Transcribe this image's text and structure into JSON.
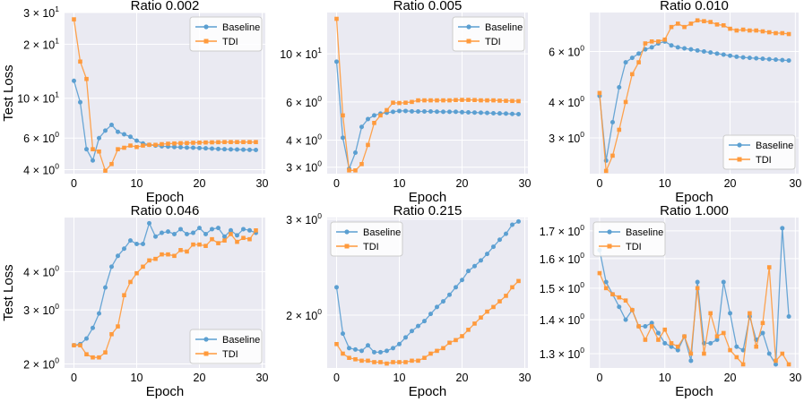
{
  "chart_data": [
    {
      "type": "line",
      "title": "Ratio 0.002",
      "xlabel": "Epoch",
      "ylabel": "Test Loss",
      "yscale": "log",
      "xlim": [
        -1.5,
        30.5
      ],
      "ylim": [
        3.8,
        30
      ],
      "xticks": [
        0,
        10,
        20,
        30
      ],
      "yticks": [
        {
          "v": 4,
          "b": "4",
          "e": "0"
        },
        {
          "v": 6,
          "b": "6",
          "e": "0"
        },
        {
          "v": 10,
          "b": "10",
          "e": "1"
        },
        {
          "v": 20,
          "b": "2",
          "e": "1"
        },
        {
          "v": 30,
          "b": "3",
          "e": "1"
        }
      ],
      "legend_position": "top-right",
      "series": [
        {
          "name": "Baseline",
          "values": [
            12.5,
            9.5,
            5.2,
            4.5,
            6.0,
            6.6,
            7.1,
            6.5,
            6.3,
            6.1,
            5.8,
            5.6,
            5.5,
            5.45,
            5.4,
            5.38,
            5.35,
            5.33,
            5.31,
            5.3,
            5.28,
            5.26,
            5.24,
            5.22,
            5.2,
            5.19,
            5.18,
            5.17,
            5.16,
            5.15
          ]
        },
        {
          "name": "TDI",
          "values": [
            27.5,
            16.0,
            12.8,
            5.2,
            5.05,
            3.95,
            4.3,
            5.2,
            5.3,
            5.45,
            5.35,
            5.45,
            5.5,
            5.5,
            5.55,
            5.58,
            5.6,
            5.62,
            5.63,
            5.65,
            5.66,
            5.67,
            5.68,
            5.69,
            5.7,
            5.7,
            5.7,
            5.7,
            5.7,
            5.7
          ]
        }
      ]
    },
    {
      "type": "line",
      "title": "Ratio 0.005",
      "xlabel": "Epoch",
      "ylabel": "",
      "yscale": "log",
      "xlim": [
        -1.5,
        30.5
      ],
      "ylim": [
        2.8,
        15.5
      ],
      "xticks": [
        0,
        10,
        20,
        30
      ],
      "yticks": [
        {
          "v": 3,
          "b": "3",
          "e": "0"
        },
        {
          "v": 4,
          "b": "4",
          "e": "0"
        },
        {
          "v": 6,
          "b": "6",
          "e": "0"
        },
        {
          "v": 10,
          "b": "10",
          "e": "1"
        }
      ],
      "legend_position": "top-right",
      "series": [
        {
          "name": "Baseline",
          "values": [
            9.2,
            4.1,
            2.95,
            3.5,
            4.6,
            5.0,
            5.2,
            5.3,
            5.35,
            5.4,
            5.45,
            5.45,
            5.43,
            5.42,
            5.42,
            5.42,
            5.41,
            5.4,
            5.4,
            5.4,
            5.38,
            5.37,
            5.36,
            5.35,
            5.34,
            5.32,
            5.31,
            5.3,
            5.28,
            5.27
          ]
        },
        {
          "name": "TDI",
          "values": [
            14.5,
            5.2,
            2.9,
            2.9,
            3.1,
            3.8,
            4.8,
            5.2,
            5.5,
            5.95,
            5.93,
            5.95,
            6.0,
            6.1,
            6.1,
            6.1,
            6.1,
            6.1,
            6.1,
            6.12,
            6.13,
            6.13,
            6.12,
            6.1,
            6.1,
            6.1,
            6.08,
            6.07,
            6.06,
            6.05
          ]
        }
      ]
    },
    {
      "type": "line",
      "title": "Ratio 0.010",
      "xlabel": "Epoch",
      "ylabel": "",
      "yscale": "log",
      "xlim": [
        -1.5,
        30.5
      ],
      "ylim": [
        2.25,
        8.2
      ],
      "xticks": [
        0,
        10,
        20,
        30
      ],
      "yticks": [
        {
          "v": 3,
          "b": "3",
          "e": "0"
        },
        {
          "v": 4,
          "b": "4",
          "e": "0"
        },
        {
          "v": 6,
          "b": "6",
          "e": "0"
        }
      ],
      "legend_position": "bottom-right",
      "series": [
        {
          "name": "Baseline",
          "values": [
            4.2,
            2.5,
            3.4,
            4.5,
            5.5,
            5.7,
            5.9,
            6.1,
            6.2,
            6.4,
            6.5,
            6.3,
            6.2,
            6.15,
            6.1,
            6.05,
            6.0,
            5.95,
            5.9,
            5.85,
            5.8,
            5.75,
            5.72,
            5.7,
            5.68,
            5.66,
            5.64,
            5.62,
            5.6,
            5.58
          ]
        },
        {
          "name": "TDI",
          "values": [
            4.3,
            2.3,
            2.6,
            3.2,
            4.0,
            5.0,
            5.5,
            6.4,
            6.5,
            6.5,
            6.6,
            7.3,
            7.5,
            7.3,
            7.5,
            7.7,
            7.65,
            7.6,
            7.45,
            7.4,
            7.2,
            7.1,
            7.15,
            7.1,
            7.1,
            7.05,
            7.0,
            6.95,
            6.95,
            6.9
          ]
        }
      ]
    },
    {
      "type": "line",
      "title": "Ratio 0.046",
      "xlabel": "Epoch",
      "ylabel": "Test Loss",
      "yscale": "log",
      "xlim": [
        -1.5,
        30.5
      ],
      "ylim": [
        1.94,
        6.0
      ],
      "xticks": [
        0,
        10,
        20,
        30
      ],
      "yticks": [
        {
          "v": 2,
          "b": "2",
          "e": "0"
        },
        {
          "v": 3,
          "b": "3",
          "e": "0"
        },
        {
          "v": 4,
          "b": "4",
          "e": "0"
        }
      ],
      "legend_position": "bottom-right",
      "series": [
        {
          "name": "Baseline",
          "values": [
            2.3,
            2.32,
            2.42,
            2.62,
            2.92,
            3.55,
            4.15,
            4.5,
            4.75,
            5.05,
            4.92,
            4.92,
            5.75,
            5.2,
            5.35,
            5.4,
            5.3,
            5.5,
            5.3,
            5.35,
            5.55,
            5.3,
            5.5,
            5.55,
            5.2,
            5.45,
            5.25,
            5.5,
            5.45,
            5.35
          ]
        },
        {
          "name": "TDI",
          "values": [
            2.3,
            2.3,
            2.15,
            2.1,
            2.1,
            2.18,
            2.5,
            2.65,
            3.35,
            3.7,
            3.95,
            4.15,
            4.35,
            4.4,
            4.55,
            4.55,
            4.5,
            4.7,
            4.65,
            4.9,
            4.9,
            4.85,
            5.1,
            4.95,
            5.05,
            5.3,
            5.0,
            5.15,
            5.1,
            5.45
          ]
        }
      ]
    },
    {
      "type": "line",
      "title": "Ratio 0.215",
      "xlabel": "Epoch",
      "ylabel": "",
      "yscale": "log",
      "xlim": [
        -1.5,
        30.5
      ],
      "ylim": [
        1.6,
        3.02
      ],
      "xticks": [
        0,
        10,
        20,
        30
      ],
      "yticks": [
        {
          "v": 2,
          "b": "2",
          "e": "0"
        },
        {
          "v": 3,
          "b": "3",
          "e": "0"
        }
      ],
      "legend_position": "top-left",
      "series": [
        {
          "name": "Baseline",
          "values": [
            2.25,
            1.85,
            1.74,
            1.73,
            1.72,
            1.76,
            1.71,
            1.71,
            1.72,
            1.74,
            1.77,
            1.82,
            1.87,
            1.91,
            1.95,
            2.01,
            2.07,
            2.12,
            2.18,
            2.25,
            2.32,
            2.41,
            2.46,
            2.52,
            2.59,
            2.67,
            2.75,
            2.82,
            2.93,
            2.97
          ]
        },
        {
          "name": "TDI",
          "values": [
            1.77,
            1.7,
            1.67,
            1.66,
            1.65,
            1.65,
            1.64,
            1.64,
            1.63,
            1.64,
            1.64,
            1.64,
            1.65,
            1.65,
            1.67,
            1.7,
            1.72,
            1.74,
            1.78,
            1.8,
            1.83,
            1.88,
            1.93,
            1.98,
            2.03,
            2.07,
            2.12,
            2.17,
            2.25,
            2.31
          ]
        }
      ]
    },
    {
      "type": "line",
      "title": "Ratio 1.000",
      "xlabel": "Epoch",
      "ylabel": "",
      "yscale": "log",
      "xlim": [
        -1.5,
        30.5
      ],
      "ylim": [
        1.26,
        1.75
      ],
      "xticks": [
        0,
        10,
        20,
        30
      ],
      "yticks": [
        {
          "v": 1.3,
          "b": "1.3",
          "e": "0"
        },
        {
          "v": 1.4,
          "b": "1.4",
          "e": "0"
        },
        {
          "v": 1.5,
          "b": "1.5",
          "e": "0"
        },
        {
          "v": 1.6,
          "b": "1.6",
          "e": "0"
        },
        {
          "v": 1.7,
          "b": "1.7",
          "e": "0"
        }
      ],
      "legend_position": "top-left",
      "series": [
        {
          "name": "Baseline",
          "values": [
            1.63,
            1.52,
            1.48,
            1.44,
            1.4,
            1.43,
            1.38,
            1.38,
            1.39,
            1.36,
            1.33,
            1.32,
            1.31,
            1.35,
            1.28,
            1.52,
            1.33,
            1.33,
            1.34,
            1.52,
            1.42,
            1.32,
            1.31,
            1.41,
            1.34,
            1.36,
            1.3,
            1.27,
            1.71,
            1.41
          ]
        },
        {
          "name": "TDI",
          "values": [
            1.55,
            1.5,
            1.48,
            1.47,
            1.46,
            1.43,
            1.38,
            1.34,
            1.38,
            1.34,
            1.37,
            1.33,
            1.32,
            1.35,
            1.3,
            1.5,
            1.3,
            1.42,
            1.35,
            1.36,
            1.31,
            1.29,
            1.27,
            1.42,
            1.32,
            1.39,
            1.57,
            1.28,
            1.3,
            1.27
          ]
        }
      ]
    }
  ],
  "legend": {
    "baseline": "Baseline",
    "tdi": "TDI"
  },
  "colors": {
    "Baseline": "#5b9fd1",
    "TDI": "#ff9a3c",
    "axes_bg": "#eaeaf2",
    "grid": "#ffffff"
  }
}
